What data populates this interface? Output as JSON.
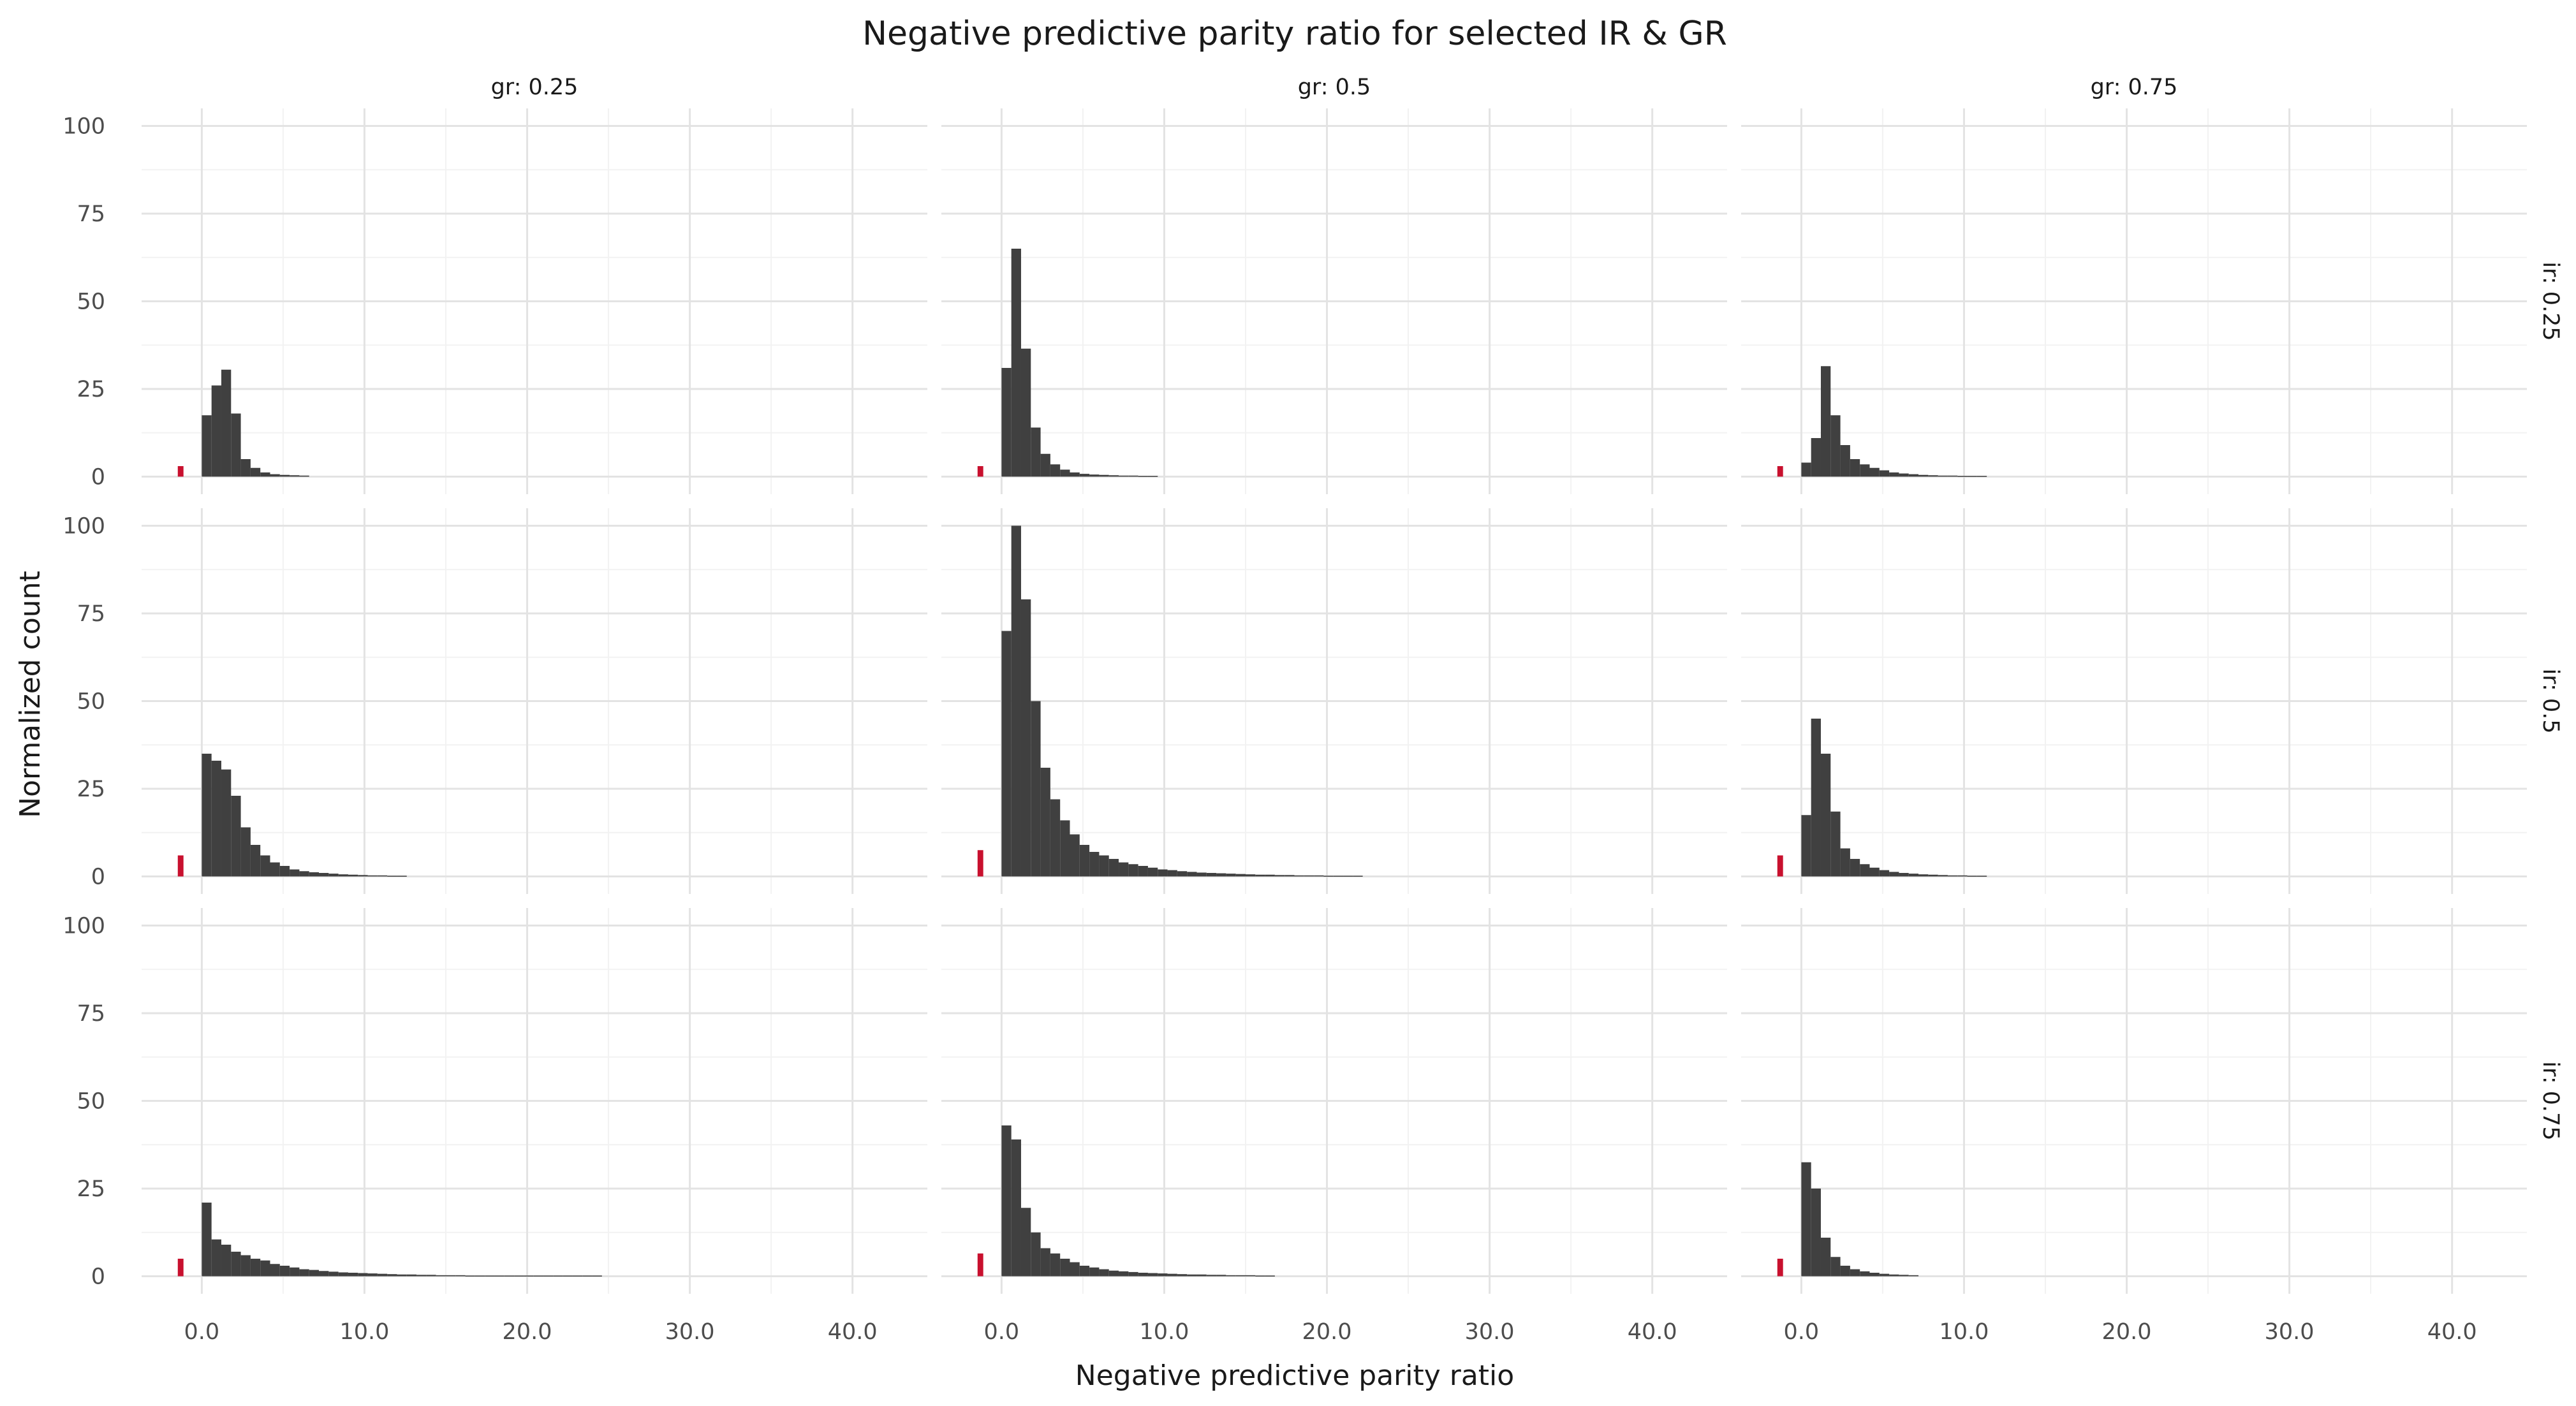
{
  "chart_data": {
    "type": "bar",
    "title": "Negative predictive parity ratio for selected IR & GR",
    "xlabel": "Negative predictive parity ratio",
    "ylabel": "Normalized count",
    "xlim": [
      -3.7,
      44.6
    ],
    "ylim": [
      -5,
      105
    ],
    "x_ticks": [
      0,
      10,
      20,
      30,
      40
    ],
    "x_tick_labels": [
      "0.0",
      "10.0",
      "20.0",
      "30.0",
      "40.0"
    ],
    "y_ticks": [
      0,
      25,
      50,
      75,
      100
    ],
    "y_tick_labels": [
      "0",
      "25",
      "50",
      "75",
      "100"
    ],
    "grid": true,
    "bin_start": 0,
    "bin_width": 0.6,
    "marker": {
      "x": -1.3,
      "width": 0.35,
      "color": "#c8102e"
    },
    "bar_color": "#404040",
    "col_facets": [
      "gr: 0.25",
      "gr: 0.5",
      "gr: 0.75"
    ],
    "row_facets": [
      "ir: 0.25",
      "ir: 0.5",
      "ir: 0.75"
    ],
    "panels": [
      {
        "row": 0,
        "col": 0,
        "marker_value": 3,
        "values": [
          17.5,
          26,
          30.5,
          18,
          5,
          2.5,
          1.2,
          0.7,
          0.5,
          0.4,
          0.3
        ]
      },
      {
        "row": 0,
        "col": 1,
        "marker_value": 3,
        "values": [
          31,
          65,
          36.5,
          14,
          6.5,
          3.5,
          2,
          1.2,
          0.8,
          0.6,
          0.5,
          0.4,
          0.3,
          0.3,
          0.2,
          0.2
        ]
      },
      {
        "row": 0,
        "col": 2,
        "marker_value": 3,
        "values": [
          4,
          11,
          31.5,
          17.5,
          9,
          5,
          3.5,
          2.5,
          1.8,
          1.2,
          0.9,
          0.7,
          0.5,
          0.4,
          0.3,
          0.3,
          0.2,
          0.2,
          0.2
        ]
      },
      {
        "row": 1,
        "col": 0,
        "marker_value": 6,
        "values": [
          35,
          33,
          30.5,
          23,
          14,
          9,
          6,
          4,
          3,
          2,
          1.5,
          1.2,
          1,
          0.8,
          0.6,
          0.5,
          0.4,
          0.3,
          0.3,
          0.2,
          0.2
        ]
      },
      {
        "row": 1,
        "col": 1,
        "marker_value": 7.5,
        "values": [
          70,
          100,
          79,
          50,
          31,
          22,
          16,
          12,
          9,
          7,
          6,
          5,
          4,
          3.5,
          3,
          2.5,
          2,
          1.8,
          1.5,
          1.3,
          1.1,
          1,
          0.9,
          0.8,
          0.7,
          0.6,
          0.5,
          0.5,
          0.4,
          0.4,
          0.3,
          0.3,
          0.3,
          0.2,
          0.2,
          0.2,
          0.2
        ]
      },
      {
        "row": 1,
        "col": 2,
        "marker_value": 6,
        "values": [
          17.5,
          45,
          35,
          18.5,
          8,
          5,
          3.5,
          2.5,
          1.8,
          1.3,
          1,
          0.8,
          0.6,
          0.5,
          0.4,
          0.3,
          0.3,
          0.2,
          0.2
        ]
      },
      {
        "row": 2,
        "col": 0,
        "marker_value": 5,
        "values": [
          21,
          10.5,
          9,
          7,
          6,
          5,
          4.5,
          3.5,
          3,
          2.5,
          2,
          1.8,
          1.5,
          1.3,
          1.1,
          1,
          0.9,
          0.8,
          0.7,
          0.6,
          0.5,
          0.5,
          0.4,
          0.4,
          0.3,
          0.3,
          0.3,
          0.2,
          0.2,
          0.2,
          0.2,
          0.2,
          0.2,
          0.2,
          0.2,
          0.2,
          0.2,
          0.2,
          0.2,
          0.2,
          0.2
        ]
      },
      {
        "row": 2,
        "col": 1,
        "marker_value": 6.5,
        "values": [
          43,
          39,
          19.5,
          12.5,
          8,
          6.5,
          5,
          4,
          3,
          2.5,
          2,
          1.6,
          1.4,
          1.2,
          1,
          0.9,
          0.8,
          0.7,
          0.6,
          0.5,
          0.5,
          0.4,
          0.4,
          0.3,
          0.3,
          0.3,
          0.2,
          0.2
        ]
      },
      {
        "row": 2,
        "col": 2,
        "marker_value": 5,
        "values": [
          32.5,
          25,
          11,
          5.5,
          3,
          2,
          1.4,
          1,
          0.7,
          0.5,
          0.4,
          0.3
        ]
      }
    ]
  }
}
